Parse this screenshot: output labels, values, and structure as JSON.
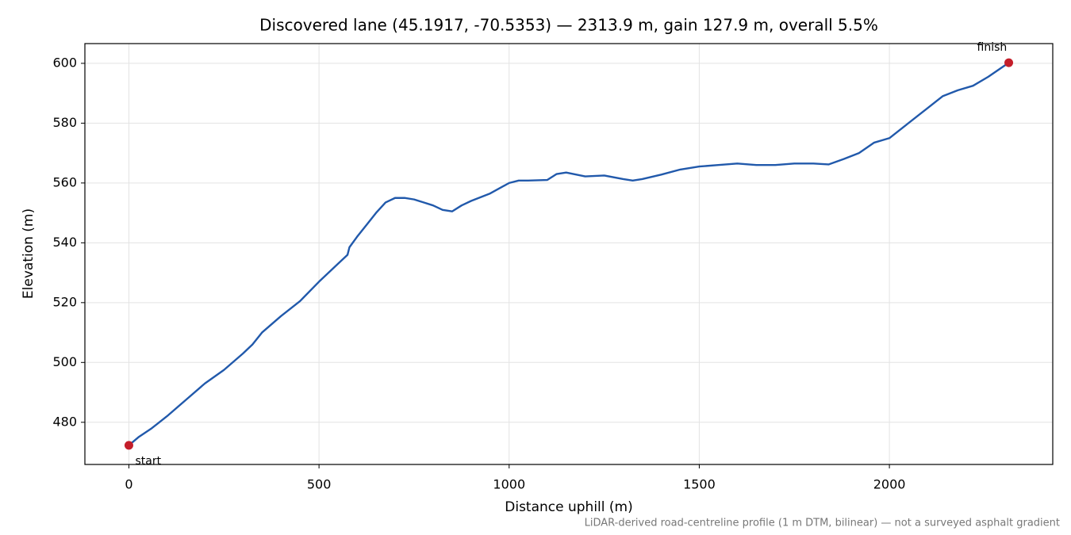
{
  "chart_data": {
    "type": "line",
    "title": "Discovered lane (45.1917, -70.5353) — 2313.9 m, gain 127.9 m, overall 5.5%",
    "xlabel": "Distance uphill (m)",
    "ylabel": "Elevation (m)",
    "note": "LiDAR-derived road-centreline profile (1 m DTM, bilinear) — not a surveyed asphalt gradient",
    "x": [
      0,
      25,
      60,
      75,
      100,
      150,
      200,
      250,
      300,
      325,
      350,
      400,
      450,
      500,
      550,
      575,
      580,
      600,
      625,
      650,
      675,
      700,
      725,
      750,
      775,
      800,
      825,
      850,
      875,
      900,
      950,
      1000,
      1025,
      1050,
      1100,
      1125,
      1150,
      1200,
      1250,
      1300,
      1325,
      1350,
      1400,
      1450,
      1500,
      1550,
      1600,
      1650,
      1700,
      1750,
      1800,
      1840,
      1880,
      1920,
      1960,
      2000,
      2040,
      2080,
      2100,
      2140,
      2180,
      2220,
      2260,
      2313.9
    ],
    "series": [
      {
        "color": "#2159ab",
        "values": [
          472.3,
          475,
          478,
          479.5,
          482,
          487.5,
          493,
          497.5,
          503,
          506,
          510,
          515.5,
          520.5,
          527,
          533,
          536,
          538.5,
          542,
          546,
          550,
          553.5,
          555,
          555,
          554.5,
          553.5,
          552.5,
          551,
          550.5,
          552.5,
          554,
          556.5,
          560,
          560.8,
          560.8,
          561,
          563,
          563.5,
          562.2,
          562.5,
          561.3,
          560.8,
          561.3,
          562.8,
          564.5,
          565.5,
          566,
          566.5,
          566,
          566,
          566.5,
          566.5,
          566.2,
          568,
          570,
          573.5,
          575,
          579,
          583,
          585,
          589,
          591,
          592.5,
          595.5,
          600.2
        ]
      }
    ],
    "endpoints": {
      "color": "#c41e2a",
      "labels": [
        "start",
        "finish"
      ]
    },
    "xlim": [
      -115.7,
      2429.6
    ],
    "ylim": [
      465.9,
      606.6
    ],
    "xticks": [
      0,
      500,
      1000,
      1500,
      2000
    ],
    "yticks": [
      480,
      500,
      520,
      540,
      560,
      580,
      600
    ],
    "grid": true
  }
}
